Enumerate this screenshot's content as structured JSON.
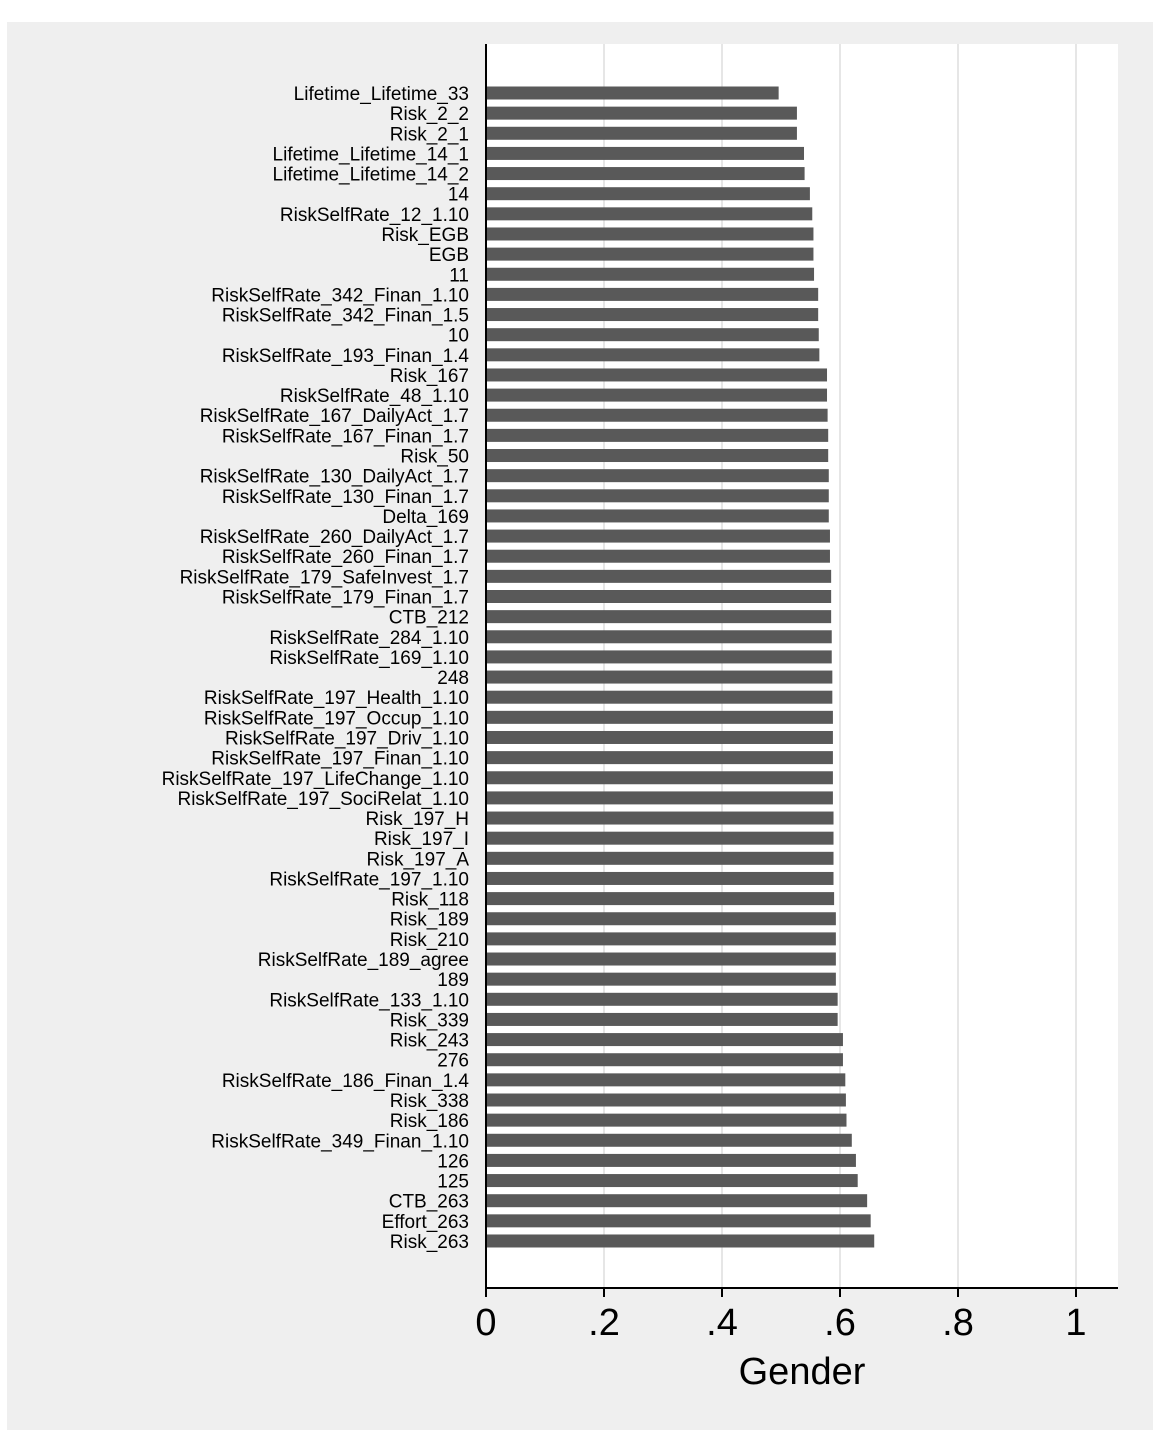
{
  "chart_data": {
    "type": "bar",
    "orientation": "horizontal",
    "xlabel": "Gender",
    "xlim": [
      0,
      1.07
    ],
    "xticks": [
      0,
      0.2,
      0.4,
      0.6,
      0.8,
      1
    ],
    "xtick_labels": [
      "0",
      ".2",
      ".4",
      ".6",
      ".8",
      "1"
    ],
    "grid": "vertical",
    "categories": [
      "Lifetime_Lifetime_33",
      "Risk_2_2",
      "Risk_2_1",
      "Lifetime_Lifetime_14_1",
      "Lifetime_Lifetime_14_2",
      "14",
      "RiskSelfRate_12_1.10",
      "Risk_EGB",
      "EGB",
      "11",
      "RiskSelfRate_342_Finan_1.10",
      "RiskSelfRate_342_Finan_1.5",
      "10",
      "RiskSelfRate_193_Finan_1.4",
      "Risk_167",
      "RiskSelfRate_48_1.10",
      "RiskSelfRate_167_DailyAct_1.7",
      "RiskSelfRate_167_Finan_1.7",
      "Risk_50",
      "RiskSelfRate_130_DailyAct_1.7",
      "RiskSelfRate_130_Finan_1.7",
      "Delta_169",
      "RiskSelfRate_260_DailyAct_1.7",
      "RiskSelfRate_260_Finan_1.7",
      "RiskSelfRate_179_SafeInvest_1.7",
      "RiskSelfRate_179_Finan_1.7",
      "CTB_212",
      "RiskSelfRate_284_1.10",
      "RiskSelfRate_169_1.10",
      "248",
      "RiskSelfRate_197_Health_1.10",
      "RiskSelfRate_197_Occup_1.10",
      "RiskSelfRate_197_Driv_1.10",
      "RiskSelfRate_197_Finan_1.10",
      "RiskSelfRate_197_LifeChange_1.10",
      "RiskSelfRate_197_SociRelat_1.10",
      "Risk_197_H",
      "Risk_197_I",
      "Risk_197_A",
      "RiskSelfRate_197_1.10",
      "Risk_118",
      "Risk_189",
      "Risk_210",
      "RiskSelfRate_189_agree",
      "189",
      "RiskSelfRate_133_1.10",
      "Risk_339",
      "Risk_243",
      "276",
      "RiskSelfRate_186_Finan_1.4",
      "Risk_338",
      "Risk_186",
      "RiskSelfRate_349_Finan_1.10",
      "126",
      "125",
      "CTB_263",
      "Effort_263",
      "Risk_263"
    ],
    "values": [
      0.496,
      0.527,
      0.527,
      0.539,
      0.54,
      0.549,
      0.553,
      0.555,
      0.555,
      0.556,
      0.563,
      0.563,
      0.564,
      0.565,
      0.578,
      0.578,
      0.579,
      0.58,
      0.58,
      0.581,
      0.581,
      0.581,
      0.583,
      0.583,
      0.585,
      0.585,
      0.585,
      0.586,
      0.586,
      0.587,
      0.587,
      0.588,
      0.588,
      0.588,
      0.588,
      0.588,
      0.589,
      0.589,
      0.589,
      0.589,
      0.59,
      0.593,
      0.593,
      0.593,
      0.593,
      0.596,
      0.596,
      0.605,
      0.605,
      0.609,
      0.61,
      0.611,
      0.62,
      0.627,
      0.63,
      0.646,
      0.652,
      0.658
    ],
    "bar_color": "#595959",
    "background_color": "#efefef",
    "plot_background_color": "#ffffff",
    "grid_color": "#e6e6e6"
  }
}
